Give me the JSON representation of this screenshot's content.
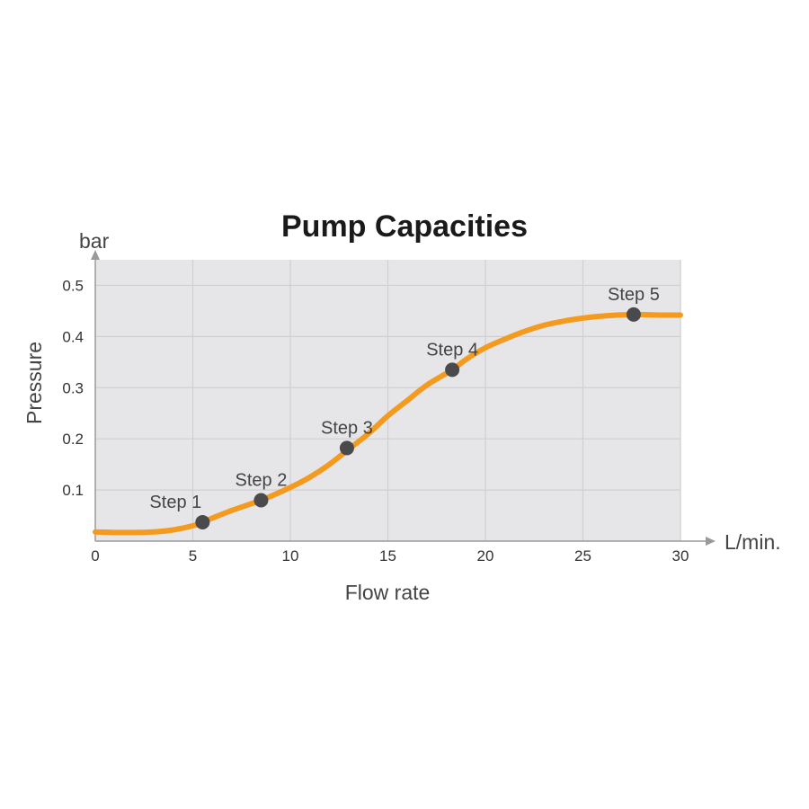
{
  "chart_data": {
    "type": "line",
    "title": "Pump Capacities",
    "xlabel": "Flow rate",
    "ylabel": "Pressure",
    "x_unit": "L/min.",
    "y_unit": "bar",
    "xlim": [
      0,
      30
    ],
    "ylim": [
      0,
      0.55
    ],
    "x_ticks": [
      0,
      5,
      10,
      15,
      20,
      25,
      30
    ],
    "y_ticks": [
      0.1,
      0.2,
      0.3,
      0.4,
      0.5
    ],
    "grid": true,
    "series": [
      {
        "x": [
          0,
          1,
          2,
          3,
          4,
          5,
          5.5,
          6,
          7,
          8.5,
          10,
          11,
          12,
          13,
          14,
          15,
          16,
          17,
          18.3,
          19,
          20,
          21,
          22,
          23,
          24,
          25,
          26,
          27.6,
          29,
          30
        ],
        "y": [
          0.018,
          0.017,
          0.017,
          0.018,
          0.022,
          0.03,
          0.037,
          0.045,
          0.06,
          0.08,
          0.105,
          0.125,
          0.15,
          0.18,
          0.21,
          0.245,
          0.275,
          0.305,
          0.335,
          0.355,
          0.378,
          0.395,
          0.41,
          0.422,
          0.43,
          0.436,
          0.44,
          0.443,
          0.442,
          0.442
        ]
      }
    ],
    "points": [
      {
        "label": "Step 1",
        "x": 5.5,
        "y": 0.037
      },
      {
        "label": "Step 2",
        "x": 8.5,
        "y": 0.08
      },
      {
        "label": "Step 3",
        "x": 12.9,
        "y": 0.182
      },
      {
        "label": "Step 4",
        "x": 18.3,
        "y": 0.335
      },
      {
        "label": "Step 5",
        "x": 27.6,
        "y": 0.443
      }
    ],
    "colors": {
      "plot_background": "#e6e6e8",
      "grid": "#cfcfd2",
      "axis": "#9a9a9a",
      "curve": "#f39a1f",
      "marker": "#4a4a4c"
    }
  }
}
